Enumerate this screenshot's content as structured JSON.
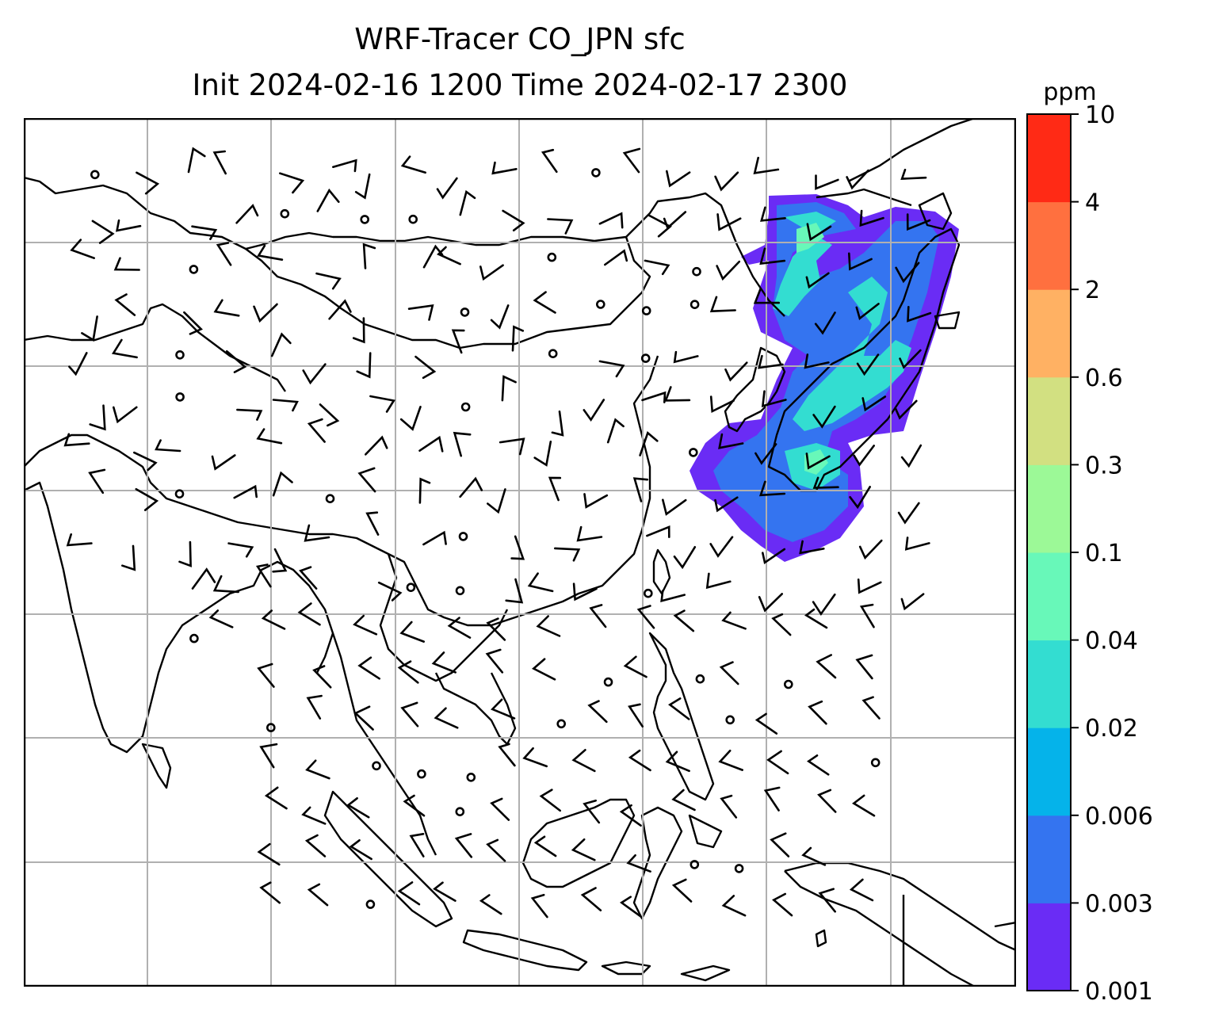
{
  "title_line1": "WRF-Tracer CO_JPN sfc",
  "title_line2": "Init 2024-02-16 1200 Time 2024-02-17 2300",
  "colorbar": {
    "unit": "ppm",
    "ticks": [
      "0.001",
      "0.003",
      "0.006",
      "0.02",
      "0.04",
      "0.1",
      "0.3",
      "0.6",
      "2",
      "4",
      "10"
    ],
    "colors": [
      "#6a2cf5",
      "#3474f0",
      "#05b3ea",
      "#33ddd1",
      "#68f8b9",
      "#9cf997",
      "#d2e081",
      "#ffb163",
      "#ff703f",
      "#ff2a15"
    ]
  },
  "plume_colors": {
    "outer": "#6a2cf5",
    "mid": "#3474f0",
    "inner": "#33ddd1",
    "core": "#68f8b9"
  },
  "gridline_color": "#b0b0b0"
}
